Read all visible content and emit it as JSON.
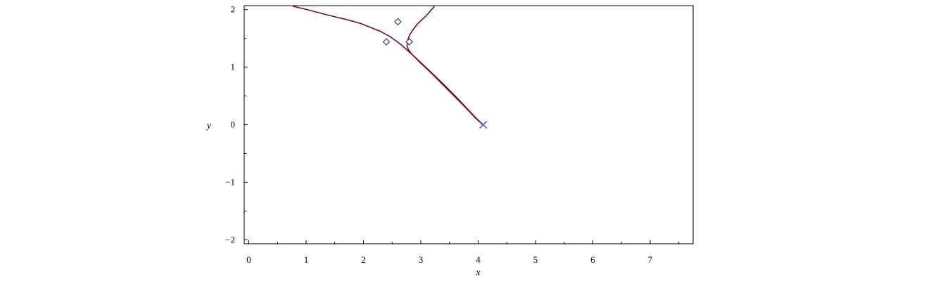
{
  "chart_data": {
    "type": "line",
    "xlabel": "x",
    "ylabel": "y",
    "xlim": [
      -0.08,
      7.75
    ],
    "ylim": [
      -2.07,
      2.07
    ],
    "x_ticks": [
      0,
      1,
      2,
      3,
      4,
      5,
      6,
      7
    ],
    "x_tick_labels": [
      "0",
      "1",
      "2",
      "3",
      "4",
      "5",
      "6",
      "7"
    ],
    "y_ticks": [
      -2,
      -1,
      0,
      1,
      2
    ],
    "y_tick_labels": [
      "−2",
      "−1",
      "0",
      "1",
      "2"
    ],
    "grid": false,
    "colors": {
      "curve": "#7a0b1d",
      "point_marker": "#444444",
      "cross_marker": "#5b5bd6"
    },
    "series": [
      {
        "marker": "line",
        "points": [
          [
            0.77,
            2.06
          ],
          [
            1.1,
            1.98
          ],
          [
            1.4,
            1.9
          ],
          [
            1.7,
            1.83
          ],
          [
            1.95,
            1.76
          ],
          [
            2.15,
            1.68
          ],
          [
            2.3,
            1.62
          ],
          [
            2.45,
            1.54
          ],
          [
            2.58,
            1.45
          ],
          [
            2.68,
            1.37
          ],
          [
            2.76,
            1.3
          ],
          [
            2.85,
            1.22
          ],
          [
            3.0,
            1.08
          ],
          [
            3.2,
            0.89
          ],
          [
            3.4,
            0.7
          ],
          [
            3.6,
            0.5
          ],
          [
            3.8,
            0.29
          ],
          [
            3.95,
            0.13
          ],
          [
            4.08,
            0.0
          ]
        ]
      },
      {
        "marker": "line",
        "points": [
          [
            3.24,
            2.06
          ],
          [
            3.1,
            1.9
          ],
          [
            2.95,
            1.76
          ],
          [
            2.85,
            1.63
          ],
          [
            2.8,
            1.55
          ],
          [
            2.77,
            1.46
          ],
          [
            2.76,
            1.38
          ],
          [
            2.78,
            1.31
          ],
          [
            2.85,
            1.22
          ],
          [
            3.0,
            1.07
          ],
          [
            3.2,
            0.88
          ],
          [
            3.4,
            0.68
          ],
          [
            3.6,
            0.48
          ],
          [
            3.8,
            0.28
          ],
          [
            3.95,
            0.12
          ],
          [
            4.08,
            0.0
          ]
        ]
      },
      {
        "marker": "diamond",
        "points": [
          [
            2.4,
            1.44
          ],
          [
            2.6,
            1.79
          ],
          [
            2.8,
            1.44
          ]
        ]
      },
      {
        "marker": "cross",
        "points": [
          [
            4.09,
            0.0
          ]
        ]
      }
    ]
  }
}
